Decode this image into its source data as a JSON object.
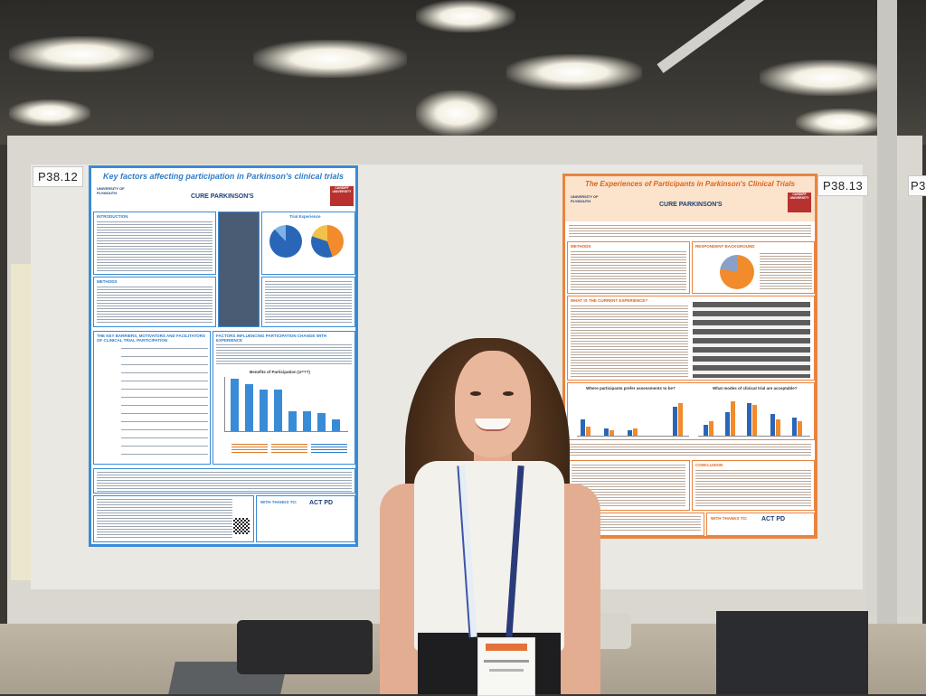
{
  "scene": {
    "description_colors": {
      "left_poster_accent": "#3a8bd6",
      "right_poster_accent": "#e9843f"
    }
  },
  "labels": {
    "left_board_number": "P38.12",
    "right_board_number": "P38.13",
    "edge_board_number": "P3"
  },
  "poster_left": {
    "title": "Key factors affecting participation in Parkinson's clinical trials",
    "logos": [
      "UNIVERSITY OF PLYMOUTH",
      "CURE PARKINSON'S",
      "CARDIFF UNIVERSITY"
    ],
    "sections": [
      "INTRODUCTION",
      "METHODS",
      "THE KEY BARRIERS, MOTIVATORS AND FACILITATORS OF CLINICAL TRIAL PARTICIPATION",
      "FACTORS INFLUENCING PARTICIPATION CHANGE WITH EXPERIENCE"
    ],
    "chart_heading": "Trial Experience",
    "bar_chart_title": "Benefits of Participation (n=??)",
    "thanks_label": "WITH THANKS TO:",
    "partner": "ACT PD"
  },
  "poster_right": {
    "title": "The Experiences of Participants in Parkinson's Clinical Trials",
    "logos": [
      "UNIVERSITY OF PLYMOUTH",
      "CURE PARKINSON'S",
      "CARDIFF UNIVERSITY"
    ],
    "sections": [
      "METHODS",
      "RESPONDENT BACKGROUND",
      "WHAT IS THE CURRENT EXPERIENCE?",
      "CONCLUSION"
    ],
    "chart_left_title": "Where participants prefer assessments to be?",
    "chart_right_title": "What modes of clinical trial are acceptable?",
    "thanks_label": "WITH THANKS TO:",
    "partner": "ACT PD"
  }
}
